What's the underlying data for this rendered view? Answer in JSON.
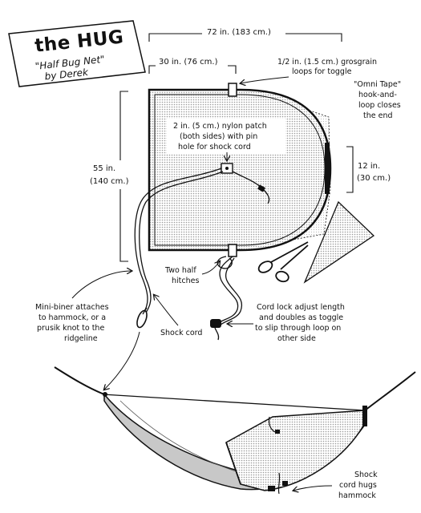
{
  "title_box": {
    "title": "the HUG",
    "subtitle": "\"Half Bug Net\"",
    "byline": "by Derek"
  },
  "dimensions": {
    "total_length": "72 in. (183 cm.)",
    "half_length": "30 in. (76 cm.)",
    "height_line1": "55 in.",
    "height_line2": "(140 cm.)",
    "end_line1": "12 in.",
    "end_line2": "(30 cm.)"
  },
  "annotations": {
    "grosgrain": [
      "1/2 in. (1.5 cm.) grosgrain",
      "loops for toggle"
    ],
    "omni_tape": [
      "\"Omni Tape\"",
      "hook-and-",
      "loop closes",
      "the end"
    ],
    "nylon_patch": [
      "2 in. (5 cm.) nylon patch",
      "(both sides) with pin",
      "hole for shock cord"
    ],
    "half_hitches": [
      "Two half",
      "hitches"
    ],
    "mini_biner": [
      "Mini-biner attaches",
      "to hammock, or a",
      "prusik knot to the",
      "ridgeline"
    ],
    "shock_cord": "Shock cord",
    "cord_lock": [
      "Cord lock adjust length",
      "and doubles as toggle",
      "to slip through loop on",
      "other side"
    ],
    "hugs_hammock": [
      "Shock",
      "cord hugs",
      "hammock"
    ]
  }
}
